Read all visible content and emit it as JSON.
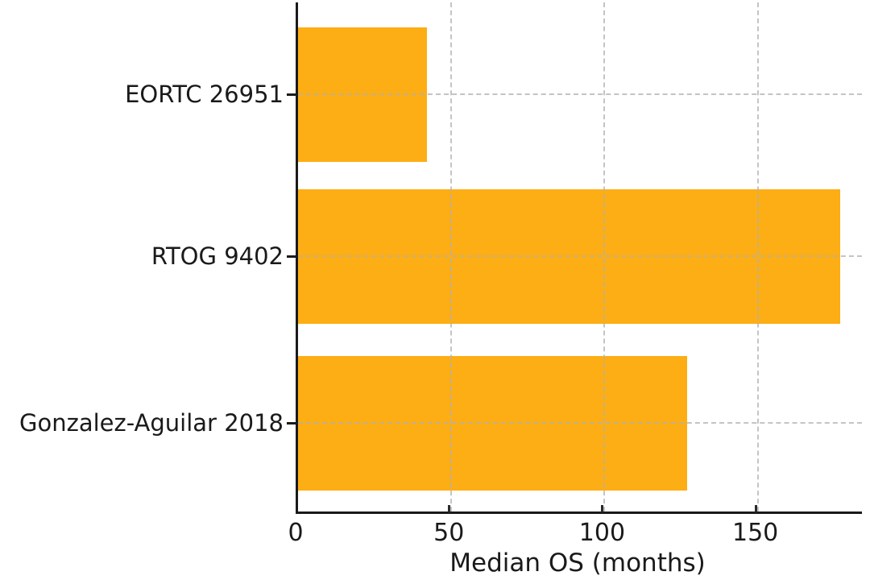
{
  "chart_data": {
    "type": "bar",
    "orientation": "horizontal",
    "title": "",
    "xlabel": "Median OS (months)",
    "ylabel": "",
    "categories": [
      "EORTC 26951",
      "RTOG 9402",
      "Gonzalez-Aguilar 2018"
    ],
    "values": [
      42,
      177,
      127
    ],
    "xlim": [
      0,
      184
    ],
    "xticks": [
      0,
      50,
      100,
      150
    ],
    "bar_color": "#FDAE14",
    "axis_color": "#1a1a1a",
    "text_color": "#1a1a1a",
    "grid_color": "#b0b0b0",
    "grid_style": "dashed",
    "legend": "none",
    "background": "#ffffff"
  }
}
